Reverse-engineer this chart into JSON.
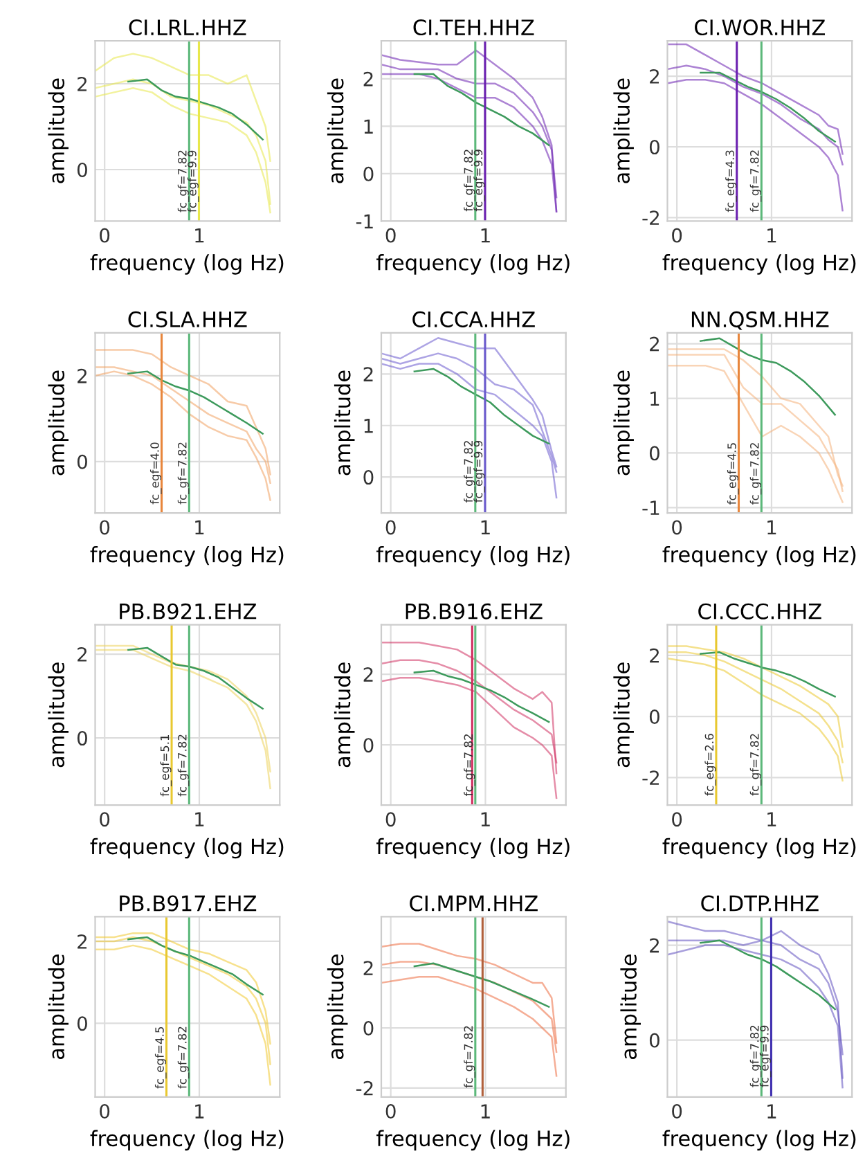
{
  "chart_data": [
    {
      "type": "line",
      "title": "CI.LRL.HHZ",
      "xlabel": "frequency (log Hz)",
      "ylabel": "amplitude",
      "xlim": [
        -0.1,
        1.85
      ],
      "ylim": [
        -1.2,
        3.0
      ],
      "xticks": [
        0,
        1
      ],
      "yticks": [
        0,
        2
      ],
      "grid": true,
      "x": [
        -0.1,
        0.1,
        0.3,
        0.5,
        0.7,
        0.9,
        1.1,
        1.3,
        1.5,
        1.6,
        1.7,
        1.75
      ],
      "series": [
        {
          "color": "#e8e84a",
          "values": [
            2.3,
            2.6,
            2.7,
            2.6,
            2.4,
            2.2,
            2.2,
            2.0,
            2.2,
            1.6,
            1.0,
            0.2
          ]
        },
        {
          "color": "#e8e84a",
          "values": [
            1.9,
            2.0,
            2.1,
            2.0,
            1.7,
            1.6,
            1.5,
            1.3,
            1.1,
            0.8,
            0.2,
            -0.8
          ]
        },
        {
          "color": "#e8e84a",
          "values": [
            1.7,
            1.8,
            1.9,
            1.8,
            1.5,
            1.3,
            1.2,
            1.1,
            0.8,
            0.4,
            -0.3,
            -1.0
          ]
        },
        {
          "color": "#3d9a5c",
          "x": [
            0.25,
            0.45,
            0.6,
            0.75,
            0.9,
            1.05,
            1.2,
            1.35,
            1.5,
            1.67
          ],
          "values": [
            2.05,
            2.1,
            1.85,
            1.7,
            1.65,
            1.55,
            1.45,
            1.3,
            1.05,
            0.7
          ]
        }
      ],
      "ref_lines": [
        {
          "axis": "x",
          "value": 0.893,
          "color": "#5cb87a"
        },
        {
          "axis": "x",
          "value": 0.996,
          "color": "#e8e84a"
        }
      ],
      "annotations": [
        {
          "text": "fc_gf=7.82",
          "x": 0.893,
          "y": -1.0
        },
        {
          "text": "fc_egf=9.9",
          "x": 0.996,
          "y": -1.0
        }
      ]
    },
    {
      "type": "line",
      "title": "CI.TEH.HHZ",
      "xlabel": "frequency (log Hz)",
      "ylabel": "amplitude",
      "xlim": [
        -0.1,
        1.85
      ],
      "ylim": [
        -1.0,
        2.8
      ],
      "xticks": [
        0,
        1
      ],
      "yticks": [
        -1,
        0,
        1,
        2
      ],
      "grid": true,
      "x": [
        -0.1,
        0.1,
        0.3,
        0.5,
        0.7,
        0.9,
        1.1,
        1.3,
        1.5,
        1.6,
        1.7,
        1.75
      ],
      "series": [
        {
          "color": "#6a1fb0",
          "values": [
            2.5,
            2.4,
            2.35,
            2.3,
            2.3,
            2.6,
            2.3,
            2.0,
            1.6,
            1.2,
            0.6,
            -0.8
          ]
        },
        {
          "color": "#6a1fb0",
          "values": [
            2.3,
            2.2,
            2.2,
            2.2,
            2.0,
            1.9,
            1.9,
            1.7,
            1.3,
            1.0,
            0.5,
            -0.5
          ]
        },
        {
          "color": "#6a1fb0",
          "values": [
            2.1,
            2.1,
            2.1,
            2.0,
            1.8,
            1.6,
            1.6,
            1.4,
            1.0,
            0.7,
            0.2,
            -0.8
          ]
        },
        {
          "color": "#3d9a5c",
          "x": [
            0.25,
            0.45,
            0.6,
            0.75,
            0.9,
            1.05,
            1.2,
            1.35,
            1.5,
            1.67
          ],
          "values": [
            2.1,
            2.1,
            1.85,
            1.7,
            1.5,
            1.35,
            1.2,
            1.0,
            0.85,
            0.6
          ]
        }
      ],
      "ref_lines": [
        {
          "axis": "x",
          "value": 0.893,
          "color": "#5cb87a"
        },
        {
          "axis": "x",
          "value": 0.996,
          "color": "#6a1fb0"
        }
      ],
      "annotations": [
        {
          "text": "fc_gf=7.82",
          "x": 0.893,
          "y": -0.8
        },
        {
          "text": "fc_egf=9.9",
          "x": 0.996,
          "y": -0.8
        }
      ]
    },
    {
      "type": "line",
      "title": "CI.WOR.HHZ",
      "xlabel": "frequency (log Hz)",
      "ylabel": "amplitude",
      "xlim": [
        -0.1,
        1.85
      ],
      "ylim": [
        -2.1,
        3.0
      ],
      "xticks": [
        0,
        1
      ],
      "yticks": [
        -2,
        0,
        2
      ],
      "grid": true,
      "x": [
        -0.1,
        0.1,
        0.3,
        0.5,
        0.7,
        0.9,
        1.1,
        1.3,
        1.5,
        1.6,
        1.7,
        1.75
      ],
      "series": [
        {
          "color": "#6a1fb0",
          "values": [
            2.9,
            2.9,
            2.6,
            2.3,
            2.0,
            1.8,
            1.5,
            1.2,
            0.9,
            0.6,
            0.5,
            -0.2
          ]
        },
        {
          "color": "#6a1fb0",
          "values": [
            2.2,
            2.3,
            2.2,
            2.0,
            1.7,
            1.5,
            1.2,
            0.8,
            0.5,
            0.2,
            0.0,
            -0.5
          ]
        },
        {
          "color": "#6a1fb0",
          "values": [
            1.8,
            1.9,
            1.9,
            1.8,
            1.5,
            1.2,
            0.8,
            0.4,
            0.0,
            -0.3,
            -0.8,
            -1.8
          ]
        },
        {
          "color": "#3d9a5c",
          "x": [
            0.25,
            0.45,
            0.6,
            0.75,
            0.9,
            1.05,
            1.2,
            1.35,
            1.5,
            1.67
          ],
          "values": [
            2.1,
            2.1,
            1.9,
            1.7,
            1.55,
            1.35,
            1.1,
            0.8,
            0.45,
            0.15
          ]
        }
      ],
      "ref_lines": [
        {
          "axis": "x",
          "value": 0.633,
          "color": "#6a1fb0"
        },
        {
          "axis": "x",
          "value": 0.893,
          "color": "#5cb87a"
        }
      ],
      "annotations": [
        {
          "text": "fc_egf=4.3",
          "x": 0.633,
          "y": -1.85
        },
        {
          "text": "fc_gf=7.82",
          "x": 0.893,
          "y": -1.85
        }
      ]
    },
    {
      "type": "line",
      "title": "CI.SLA.HHZ",
      "xlabel": "frequency (log Hz)",
      "ylabel": "amplitude",
      "xlim": [
        -0.1,
        1.85
      ],
      "ylim": [
        -1.2,
        3.0
      ],
      "xticks": [
        0,
        1
      ],
      "yticks": [
        0,
        2
      ],
      "grid": true,
      "x": [
        -0.1,
        0.1,
        0.3,
        0.5,
        0.7,
        0.9,
        1.1,
        1.3,
        1.5,
        1.6,
        1.7,
        1.75
      ],
      "series": [
        {
          "color": "#f0a060",
          "values": [
            2.6,
            2.6,
            2.6,
            2.5,
            2.2,
            2.0,
            1.8,
            1.4,
            1.3,
            0.8,
            0.3,
            -0.3
          ]
        },
        {
          "color": "#f0a060",
          "values": [
            2.2,
            2.2,
            2.1,
            2.0,
            1.7,
            1.4,
            1.1,
            0.9,
            0.7,
            0.3,
            0.0,
            -0.5
          ]
        },
        {
          "color": "#f0a060",
          "values": [
            2.0,
            2.1,
            2.0,
            1.8,
            1.5,
            1.1,
            0.8,
            0.6,
            0.5,
            0.1,
            -0.4,
            -0.9
          ]
        },
        {
          "color": "#3d9a5c",
          "x": [
            0.25,
            0.45,
            0.6,
            0.75,
            0.9,
            1.05,
            1.2,
            1.35,
            1.5,
            1.67
          ],
          "values": [
            2.05,
            2.1,
            1.9,
            1.75,
            1.65,
            1.5,
            1.3,
            1.1,
            0.9,
            0.65
          ]
        }
      ],
      "ref_lines": [
        {
          "axis": "x",
          "value": 0.602,
          "color": "#e8863c"
        },
        {
          "axis": "x",
          "value": 0.893,
          "color": "#5cb87a"
        }
      ],
      "annotations": [
        {
          "text": "fc_egf=4.0",
          "x": 0.602,
          "y": -1.0
        },
        {
          "text": "fc_gf=7.82",
          "x": 0.893,
          "y": -1.0
        }
      ]
    },
    {
      "type": "line",
      "title": "CI.CCA.HHZ",
      "xlabel": "frequency (log Hz)",
      "ylabel": "amplitude",
      "xlim": [
        -0.1,
        1.85
      ],
      "ylim": [
        -0.7,
        2.8
      ],
      "xticks": [
        0,
        1
      ],
      "yticks": [
        0,
        1,
        2
      ],
      "grid": true,
      "x": [
        -0.1,
        0.1,
        0.3,
        0.5,
        0.7,
        0.9,
        1.1,
        1.3,
        1.5,
        1.6,
        1.7,
        1.75
      ],
      "series": [
        {
          "color": "#6a5acd",
          "values": [
            2.4,
            2.3,
            2.5,
            2.7,
            2.6,
            2.5,
            2.5,
            2.0,
            1.5,
            1.2,
            0.5,
            0.2
          ]
        },
        {
          "color": "#6a5acd",
          "values": [
            2.3,
            2.2,
            2.3,
            2.4,
            2.3,
            2.1,
            1.8,
            1.7,
            1.4,
            0.9,
            0.4,
            0.1
          ]
        },
        {
          "color": "#6a5acd",
          "values": [
            2.2,
            2.1,
            2.2,
            2.2,
            2.0,
            1.7,
            1.6,
            1.3,
            1.0,
            0.8,
            0.3,
            -0.4
          ]
        },
        {
          "color": "#3d9a5c",
          "x": [
            0.25,
            0.45,
            0.6,
            0.75,
            0.9,
            1.05,
            1.2,
            1.35,
            1.5,
            1.67
          ],
          "values": [
            2.05,
            2.1,
            1.95,
            1.75,
            1.6,
            1.45,
            1.2,
            1.0,
            0.8,
            0.65
          ]
        }
      ],
      "ref_lines": [
        {
          "axis": "x",
          "value": 0.893,
          "color": "#5cb87a"
        },
        {
          "axis": "x",
          "value": 0.996,
          "color": "#6a5acd"
        }
      ],
      "annotations": [
        {
          "text": "fc_gf=7.82",
          "x": 0.893,
          "y": -0.5
        },
        {
          "text": "fc_egf=9.9",
          "x": 0.996,
          "y": -0.5
        }
      ]
    },
    {
      "type": "line",
      "title": "NN.QSM.HHZ",
      "xlabel": "frequency (log Hz)",
      "ylabel": "amplitude",
      "xlim": [
        -0.1,
        1.85
      ],
      "ylim": [
        -1.1,
        2.2
      ],
      "xticks": [
        0,
        1
      ],
      "yticks": [
        -1,
        0,
        1,
        2
      ],
      "grid": true,
      "x": [
        -0.1,
        0.1,
        0.3,
        0.5,
        0.7,
        0.9,
        1.1,
        1.3,
        1.5,
        1.6,
        1.7,
        1.75
      ],
      "series": [
        {
          "color": "#f4b07a",
          "values": [
            1.9,
            1.9,
            1.9,
            1.9,
            1.7,
            1.4,
            1.0,
            0.9,
            0.5,
            0.3,
            -0.4,
            -0.6
          ]
        },
        {
          "color": "#f4b07a",
          "values": [
            1.8,
            1.8,
            1.8,
            1.8,
            1.2,
            0.9,
            0.9,
            0.6,
            0.3,
            0.0,
            -0.3,
            -0.7
          ]
        },
        {
          "color": "#f4b07a",
          "values": [
            1.6,
            1.6,
            1.6,
            1.5,
            0.9,
            0.3,
            0.5,
            0.3,
            0.0,
            -0.3,
            -0.7,
            -0.9
          ]
        },
        {
          "color": "#3d9a5c",
          "x": [
            0.25,
            0.45,
            0.6,
            0.75,
            0.9,
            1.05,
            1.2,
            1.35,
            1.5,
            1.67
          ],
          "values": [
            2.05,
            2.1,
            1.95,
            1.8,
            1.7,
            1.65,
            1.5,
            1.3,
            1.05,
            0.7
          ]
        }
      ],
      "ref_lines": [
        {
          "axis": "x",
          "value": 0.653,
          "color": "#e8863c"
        },
        {
          "axis": "x",
          "value": 0.893,
          "color": "#5cb87a"
        }
      ],
      "annotations": [
        {
          "text": "fc_egf=4.5",
          "x": 0.653,
          "y": -0.95
        },
        {
          "text": "fc_gf=7.82",
          "x": 0.893,
          "y": -0.95
        }
      ]
    },
    {
      "type": "line",
      "title": "PB.B921.EHZ",
      "xlabel": "frequency (log Hz)",
      "ylabel": "amplitude",
      "xlim": [
        -0.1,
        1.85
      ],
      "ylim": [
        -1.6,
        2.7
      ],
      "xticks": [
        0,
        1
      ],
      "yticks": [
        0,
        2
      ],
      "grid": true,
      "x": [
        -0.1,
        0.1,
        0.3,
        0.5,
        0.7,
        0.9,
        1.1,
        1.3,
        1.5,
        1.6,
        1.7,
        1.75
      ],
      "series": [
        {
          "color": "#ecd25a",
          "values": [
            2.2,
            2.2,
            2.2,
            2.0,
            1.8,
            1.7,
            1.6,
            1.4,
            1.0,
            0.6,
            0.0,
            -0.8
          ]
        },
        {
          "color": "#ecd25a",
          "values": [
            2.1,
            2.1,
            2.1,
            1.9,
            1.7,
            1.6,
            1.4,
            1.2,
            0.8,
            0.4,
            -0.3,
            -1.2
          ]
        },
        {
          "color": "#3d9a5c",
          "x": [
            0.25,
            0.45,
            0.6,
            0.75,
            0.9,
            1.05,
            1.2,
            1.35,
            1.5,
            1.67
          ],
          "values": [
            2.1,
            2.15,
            1.95,
            1.75,
            1.7,
            1.6,
            1.45,
            1.2,
            0.95,
            0.7
          ]
        }
      ],
      "ref_lines": [
        {
          "axis": "x",
          "value": 0.708,
          "color": "#e8c830"
        },
        {
          "axis": "x",
          "value": 0.893,
          "color": "#5cb87a"
        }
      ],
      "annotations": [
        {
          "text": "fc_egf=5.1",
          "x": 0.708,
          "y": -1.4
        },
        {
          "text": "fc_gf=7.82",
          "x": 0.893,
          "y": -1.4
        }
      ]
    },
    {
      "type": "line",
      "title": "PB.B916.EHZ",
      "xlabel": "frequency (log Hz)",
      "ylabel": "amplitude",
      "xlim": [
        -0.1,
        1.85
      ],
      "ylim": [
        -1.7,
        3.4
      ],
      "xticks": [
        0,
        1
      ],
      "yticks": [
        0,
        2
      ],
      "grid": true,
      "x": [
        -0.1,
        0.1,
        0.3,
        0.5,
        0.7,
        0.9,
        1.1,
        1.3,
        1.5,
        1.6,
        1.7,
        1.75
      ],
      "series": [
        {
          "color": "#d03060",
          "values": [
            2.9,
            2.9,
            2.9,
            2.8,
            2.7,
            2.4,
            2.0,
            1.6,
            1.3,
            1.5,
            1.2,
            -0.8
          ]
        },
        {
          "color": "#d03060",
          "values": [
            2.3,
            2.4,
            2.4,
            2.3,
            2.1,
            1.8,
            1.4,
            1.0,
            0.7,
            0.5,
            0.3,
            -0.5
          ]
        },
        {
          "color": "#d03060",
          "values": [
            1.8,
            1.9,
            1.9,
            1.8,
            1.7,
            1.5,
            1.0,
            0.5,
            0.2,
            0.0,
            -0.3,
            -1.5
          ]
        },
        {
          "color": "#3d9a5c",
          "x": [
            0.25,
            0.45,
            0.6,
            0.75,
            0.9,
            1.05,
            1.2,
            1.35,
            1.5,
            1.67
          ],
          "values": [
            2.05,
            2.1,
            1.95,
            1.85,
            1.7,
            1.55,
            1.35,
            1.1,
            0.9,
            0.65
          ]
        }
      ],
      "ref_lines": [
        {
          "axis": "x",
          "value": 0.86,
          "color": "#d03060"
        },
        {
          "axis": "x",
          "value": 0.893,
          "color": "#5cb87a"
        }
      ],
      "annotations": [
        {
          "text": "fc_gf=7.82",
          "x": 0.893,
          "y": -1.45
        }
      ]
    },
    {
      "type": "line",
      "title": "CI.CCC.HHZ",
      "xlabel": "frequency (log Hz)",
      "ylabel": "amplitude",
      "xlim": [
        -0.1,
        1.85
      ],
      "ylim": [
        -2.9,
        3.0
      ],
      "xticks": [
        0,
        1
      ],
      "yticks": [
        -2,
        0,
        2
      ],
      "grid": true,
      "x": [
        -0.1,
        0.1,
        0.3,
        0.5,
        0.7,
        0.9,
        1.1,
        1.3,
        1.5,
        1.6,
        1.7,
        1.75
      ],
      "series": [
        {
          "color": "#ebc830",
          "values": [
            2.3,
            2.3,
            2.2,
            2.1,
            1.9,
            1.6,
            1.3,
            1.0,
            0.6,
            0.4,
            0.0,
            -1.0
          ]
        },
        {
          "color": "#ebc830",
          "values": [
            2.1,
            2.1,
            2.0,
            1.8,
            1.5,
            1.2,
            0.9,
            0.5,
            0.1,
            -0.3,
            -0.8,
            -1.5
          ]
        },
        {
          "color": "#ebc830",
          "values": [
            1.9,
            1.8,
            1.7,
            1.5,
            1.1,
            0.7,
            0.4,
            0.1,
            -0.4,
            -0.8,
            -1.3,
            -2.1
          ]
        },
        {
          "color": "#3d9a5c",
          "x": [
            0.25,
            0.45,
            0.6,
            0.75,
            0.9,
            1.05,
            1.2,
            1.35,
            1.5,
            1.67
          ],
          "values": [
            2.05,
            2.1,
            1.9,
            1.75,
            1.6,
            1.5,
            1.35,
            1.15,
            0.9,
            0.65
          ]
        }
      ],
      "ref_lines": [
        {
          "axis": "x",
          "value": 0.415,
          "color": "#e8c830"
        },
        {
          "axis": "x",
          "value": 0.893,
          "color": "#5cb87a"
        }
      ],
      "annotations": [
        {
          "text": "fc_egf=2.6",
          "x": 0.415,
          "y": -2.6
        },
        {
          "text": "fc_gf=7.82",
          "x": 0.893,
          "y": -2.6
        }
      ]
    },
    {
      "type": "line",
      "title": "PB.B917.EHZ",
      "xlabel": "frequency (log Hz)",
      "ylabel": "amplitude",
      "xlim": [
        -0.1,
        1.85
      ],
      "ylim": [
        -1.8,
        2.6
      ],
      "xticks": [
        0,
        1
      ],
      "yticks": [
        0,
        2
      ],
      "grid": true,
      "x": [
        -0.1,
        0.1,
        0.3,
        0.5,
        0.7,
        0.9,
        1.1,
        1.3,
        1.5,
        1.6,
        1.7,
        1.75
      ],
      "series": [
        {
          "color": "#f0c830",
          "values": [
            2.1,
            2.1,
            2.2,
            2.2,
            2.0,
            1.8,
            1.7,
            1.5,
            1.3,
            1.0,
            0.3,
            -0.5
          ]
        },
        {
          "color": "#f0c830",
          "values": [
            2.0,
            2.0,
            2.1,
            2.0,
            1.8,
            1.6,
            1.4,
            1.2,
            0.9,
            0.6,
            0.0,
            -1.0
          ]
        },
        {
          "color": "#f0c830",
          "values": [
            1.8,
            1.8,
            1.9,
            1.8,
            1.6,
            1.4,
            1.2,
            0.9,
            0.6,
            0.2,
            -0.5,
            -1.5
          ]
        },
        {
          "color": "#3d9a5c",
          "x": [
            0.25,
            0.45,
            0.6,
            0.75,
            0.9,
            1.05,
            1.2,
            1.35,
            1.5,
            1.67
          ],
          "values": [
            2.05,
            2.1,
            1.9,
            1.75,
            1.65,
            1.5,
            1.35,
            1.2,
            0.95,
            0.7
          ]
        }
      ],
      "ref_lines": [
        {
          "axis": "x",
          "value": 0.653,
          "color": "#e8c830"
        },
        {
          "axis": "x",
          "value": 0.893,
          "color": "#5cb87a"
        }
      ],
      "annotations": [
        {
          "text": "fc_egf=4.5",
          "x": 0.653,
          "y": -1.6
        },
        {
          "text": "fc_gf=7.82",
          "x": 0.893,
          "y": -1.6
        }
      ]
    },
    {
      "type": "line",
      "title": "CI.MPM.HHZ",
      "xlabel": "frequency (log Hz)",
      "ylabel": "amplitude",
      "xlim": [
        -0.1,
        1.85
      ],
      "ylim": [
        -2.3,
        3.7
      ],
      "xticks": [
        0,
        1
      ],
      "yticks": [
        -2,
        0,
        2
      ],
      "grid": true,
      "x": [
        -0.1,
        0.1,
        0.3,
        0.5,
        0.7,
        0.9,
        1.1,
        1.3,
        1.5,
        1.6,
        1.7,
        1.75
      ],
      "series": [
        {
          "color": "#ec6c40",
          "values": [
            2.7,
            2.8,
            2.8,
            2.6,
            2.4,
            2.3,
            2.1,
            1.8,
            1.5,
            1.5,
            1.0,
            -0.5
          ]
        },
        {
          "color": "#ec6c40",
          "values": [
            2.1,
            2.2,
            2.2,
            2.1,
            1.9,
            1.7,
            1.5,
            1.2,
            0.9,
            0.6,
            0.3,
            -0.8
          ]
        },
        {
          "color": "#ec6c40",
          "values": [
            1.5,
            1.6,
            1.7,
            1.7,
            1.5,
            1.3,
            1.0,
            0.7,
            0.3,
            0.0,
            -0.3,
            -1.6
          ]
        },
        {
          "color": "#3d9a5c",
          "x": [
            0.25,
            0.45,
            0.6,
            0.75,
            0.9,
            1.05,
            1.2,
            1.35,
            1.5,
            1.67
          ],
          "values": [
            2.05,
            2.15,
            2.0,
            1.85,
            1.7,
            1.55,
            1.35,
            1.15,
            0.95,
            0.7
          ]
        }
      ],
      "ref_lines": [
        {
          "axis": "x",
          "value": 0.893,
          "color": "#5cb87a"
        },
        {
          "axis": "x",
          "value": 0.97,
          "color": "#b0603c"
        }
      ],
      "annotations": [
        {
          "text": "fc_gf=7.82",
          "x": 0.893,
          "y": -2.0
        }
      ]
    },
    {
      "type": "line",
      "title": "CI.DTP.HHZ",
      "xlabel": "frequency (log Hz)",
      "ylabel": "amplitude",
      "xlim": [
        -0.1,
        1.85
      ],
      "ylim": [
        -1.2,
        2.6
      ],
      "xticks": [
        0,
        1
      ],
      "yticks": [
        0,
        2
      ],
      "grid": true,
      "x": [
        -0.1,
        0.1,
        0.3,
        0.5,
        0.7,
        0.9,
        1.1,
        1.3,
        1.5,
        1.6,
        1.7,
        1.75
      ],
      "series": [
        {
          "color": "#6050c0",
          "values": [
            2.5,
            2.4,
            2.3,
            2.3,
            2.2,
            2.1,
            2.3,
            2.0,
            1.8,
            1.4,
            0.8,
            -0.8
          ]
        },
        {
          "color": "#6050c0",
          "values": [
            2.1,
            2.1,
            2.1,
            2.1,
            2.0,
            2.1,
            2.0,
            1.7,
            1.5,
            1.2,
            0.6,
            -0.3
          ]
        },
        {
          "color": "#6050c0",
          "values": [
            1.8,
            1.9,
            2.0,
            2.0,
            1.9,
            1.8,
            1.7,
            1.5,
            1.1,
            0.8,
            0.3,
            -1.0
          ]
        },
        {
          "color": "#3d9a5c",
          "x": [
            0.25,
            0.45,
            0.6,
            0.75,
            0.9,
            1.05,
            1.2,
            1.35,
            1.5,
            1.67
          ],
          "values": [
            2.05,
            2.1,
            1.95,
            1.8,
            1.7,
            1.55,
            1.35,
            1.15,
            0.95,
            0.65
          ]
        }
      ],
      "ref_lines": [
        {
          "axis": "x",
          "value": 0.893,
          "color": "#5cb87a"
        },
        {
          "axis": "x",
          "value": 0.996,
          "color": "#4030b0"
        }
      ],
      "annotations": [
        {
          "text": "fc_gf=7.82",
          "x": 0.893,
          "y": -1.0
        },
        {
          "text": "fc_egf=9.9",
          "x": 0.996,
          "y": -1.0
        }
      ]
    }
  ]
}
